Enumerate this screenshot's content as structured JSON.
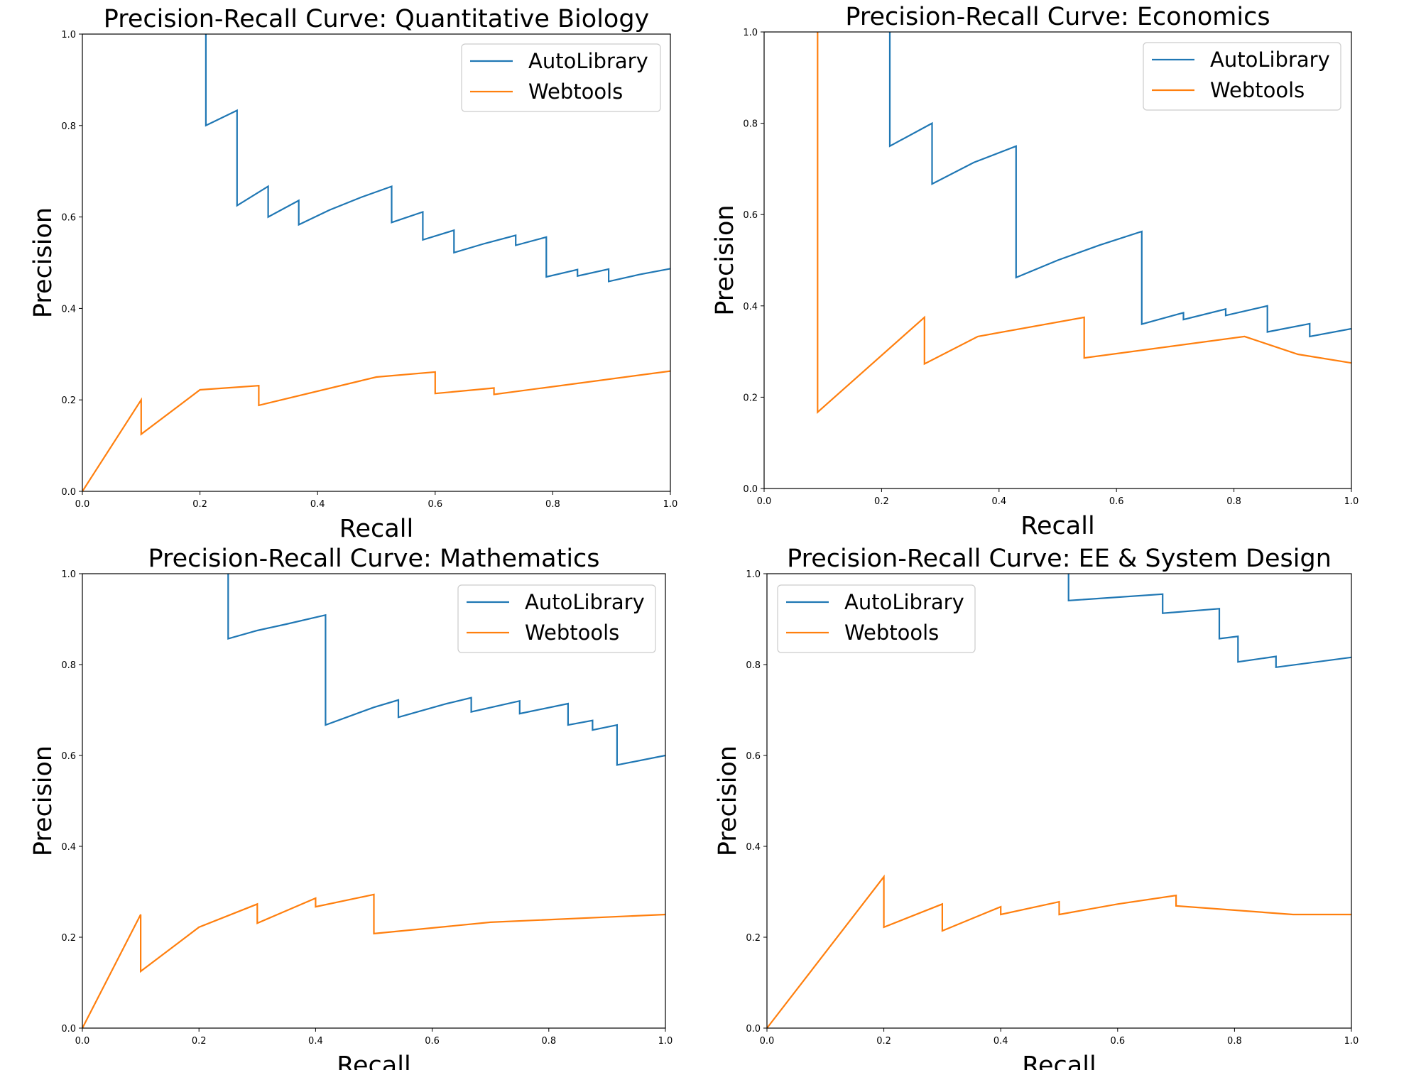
{
  "chart_data": [
    {
      "type": "line",
      "title": "Precision-Recall Curve: Quantitative Biology",
      "xlabel": "Recall",
      "ylabel": "Precision",
      "xlim": [
        0,
        1
      ],
      "ylim": [
        0,
        1
      ],
      "xticks": [
        "0.0",
        "0.2",
        "0.4",
        "0.6",
        "0.8",
        "1.0"
      ],
      "yticks": [
        "0.0",
        "0.2",
        "0.4",
        "0.6",
        "0.8",
        "1.0"
      ],
      "grid": false,
      "legend_position": "top-right",
      "series": [
        {
          "name": "AutoLibrary",
          "color": "#1f77b4",
          "x": [
            0.21,
            0.21,
            0.263,
            0.263,
            0.316,
            0.316,
            0.368,
            0.368,
            0.42,
            0.474,
            0.526,
            0.526,
            0.579,
            0.579,
            0.632,
            0.632,
            0.684,
            0.737,
            0.737,
            0.789,
            0.789,
            0.842,
            0.842,
            0.895,
            0.895,
            0.947,
            1.0
          ],
          "y": [
            1.0,
            0.8,
            0.833,
            0.625,
            0.667,
            0.6,
            0.636,
            0.583,
            0.615,
            0.643,
            0.667,
            0.588,
            0.611,
            0.55,
            0.571,
            0.522,
            0.542,
            0.56,
            0.538,
            0.556,
            0.469,
            0.485,
            0.471,
            0.486,
            0.459,
            0.474,
            0.487
          ]
        },
        {
          "name": "Webtools",
          "color": "#ff7f0e",
          "x": [
            0.0,
            0.1,
            0.1,
            0.2,
            0.3,
            0.3,
            0.5,
            0.6,
            0.6,
            0.7,
            0.7,
            1.0
          ],
          "y": [
            0.0,
            0.2,
            0.125,
            0.222,
            0.231,
            0.188,
            0.25,
            0.261,
            0.214,
            0.226,
            0.212,
            0.263
          ]
        }
      ]
    },
    {
      "type": "line",
      "title": "Precision-Recall Curve: Economics",
      "xlabel": "Recall",
      "ylabel": "Precision",
      "xlim": [
        0,
        1
      ],
      "ylim": [
        0,
        1
      ],
      "xticks": [
        "0.0",
        "0.2",
        "0.4",
        "0.6",
        "0.8",
        "1.0"
      ],
      "yticks": [
        "0.0",
        "0.2",
        "0.4",
        "0.6",
        "0.8",
        "1.0"
      ],
      "grid": false,
      "legend_position": "top-right",
      "series": [
        {
          "name": "AutoLibrary",
          "color": "#1f77b4",
          "x": [
            0.214,
            0.214,
            0.286,
            0.286,
            0.357,
            0.429,
            0.429,
            0.5,
            0.571,
            0.643,
            0.643,
            0.714,
            0.714,
            0.786,
            0.786,
            0.857,
            0.857,
            0.929,
            0.929,
            1.0
          ],
          "y": [
            1.0,
            0.75,
            0.8,
            0.667,
            0.714,
            0.75,
            0.462,
            0.5,
            0.533,
            0.563,
            0.36,
            0.385,
            0.37,
            0.393,
            0.379,
            0.4,
            0.343,
            0.361,
            0.333,
            0.35
          ]
        },
        {
          "name": "Webtools",
          "color": "#ff7f0e",
          "x": [
            0.091,
            0.091,
            0.273,
            0.273,
            0.364,
            0.545,
            0.545,
            0.818,
            0.909,
            1.0
          ],
          "y": [
            1.0,
            0.167,
            0.375,
            0.273,
            0.333,
            0.375,
            0.286,
            0.333,
            0.294,
            0.275
          ]
        }
      ]
    },
    {
      "type": "line",
      "title": "Precision-Recall Curve: Mathematics",
      "xlabel": "Recall",
      "ylabel": "Precision",
      "xlim": [
        0,
        1
      ],
      "ylim": [
        0,
        1
      ],
      "xticks": [
        "0.0",
        "0.2",
        "0.4",
        "0.6",
        "0.8",
        "1.0"
      ],
      "yticks": [
        "0.0",
        "0.2",
        "0.4",
        "0.6",
        "0.8",
        "1.0"
      ],
      "grid": false,
      "legend_position": "top-right",
      "series": [
        {
          "name": "AutoLibrary",
          "color": "#1f77b4",
          "x": [
            0.25,
            0.25,
            0.3,
            0.35,
            0.417,
            0.417,
            0.5,
            0.542,
            0.542,
            0.625,
            0.667,
            0.667,
            0.75,
            0.75,
            0.833,
            0.833,
            0.875,
            0.875,
            0.917,
            0.917,
            1.0
          ],
          "y": [
            1.0,
            0.857,
            0.875,
            0.889,
            0.909,
            0.667,
            0.706,
            0.722,
            0.684,
            0.714,
            0.727,
            0.696,
            0.72,
            0.692,
            0.714,
            0.667,
            0.677,
            0.656,
            0.667,
            0.579,
            0.6
          ]
        },
        {
          "name": "Webtools",
          "color": "#ff7f0e",
          "x": [
            0.0,
            0.1,
            0.1,
            0.2,
            0.3,
            0.3,
            0.4,
            0.4,
            0.5,
            0.5,
            0.7,
            1.0
          ],
          "y": [
            0.0,
            0.25,
            0.125,
            0.222,
            0.273,
            0.231,
            0.286,
            0.267,
            0.294,
            0.208,
            0.233,
            0.25
          ]
        }
      ]
    },
    {
      "type": "line",
      "title": "Precision-Recall Curve: EE & System Design",
      "xlabel": "Recall",
      "ylabel": "Precision",
      "xlim": [
        0,
        1
      ],
      "ylim": [
        0,
        1
      ],
      "xticks": [
        "0.0",
        "0.2",
        "0.4",
        "0.6",
        "0.8",
        "1.0"
      ],
      "yticks": [
        "0.0",
        "0.2",
        "0.4",
        "0.6",
        "0.8",
        "1.0"
      ],
      "grid": false,
      "legend_position": "top-left",
      "series": [
        {
          "name": "AutoLibrary",
          "color": "#1f77b4",
          "x": [
            0.516,
            0.516,
            0.677,
            0.677,
            0.774,
            0.774,
            0.806,
            0.806,
            0.871,
            0.871,
            1.0
          ],
          "y": [
            1.0,
            0.941,
            0.955,
            0.913,
            0.923,
            0.857,
            0.862,
            0.806,
            0.818,
            0.794,
            0.816
          ]
        },
        {
          "name": "Webtools",
          "color": "#ff7f0e",
          "x": [
            0.0,
            0.2,
            0.2,
            0.3,
            0.3,
            0.4,
            0.4,
            0.5,
            0.5,
            0.6,
            0.7,
            0.7,
            0.9,
            1.0
          ],
          "y": [
            0.0,
            0.333,
            0.222,
            0.273,
            0.214,
            0.267,
            0.25,
            0.278,
            0.25,
            0.273,
            0.292,
            0.269,
            0.25,
            0.25
          ]
        }
      ]
    }
  ]
}
